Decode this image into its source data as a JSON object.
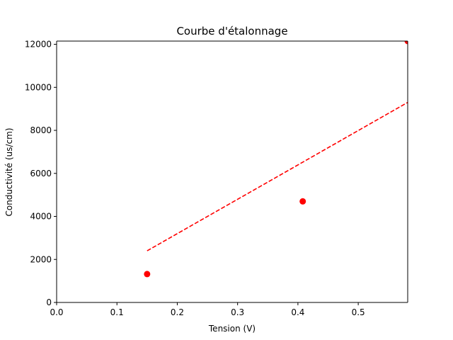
{
  "chart_data": {
    "type": "scatter",
    "title": "Courbe d'étalonnage",
    "xlabel": "Tension (V)",
    "ylabel": "Conductivité (us/cm)",
    "xlim": [
      0,
      0.582
    ],
    "ylim": [
      0,
      12150
    ],
    "x_ticks": [
      0.0,
      0.1,
      0.2,
      0.3,
      0.4,
      0.5
    ],
    "x_tick_labels": [
      "0.0",
      "0.1",
      "0.2",
      "0.3",
      "0.4",
      "0.5"
    ],
    "y_ticks": [
      0,
      2000,
      4000,
      6000,
      8000,
      10000,
      12000
    ],
    "y_tick_labels": [
      "0",
      "2000",
      "4000",
      "6000",
      "8000",
      "10000",
      "12000"
    ],
    "grid": false,
    "series": [
      {
        "kind": "scatter",
        "x": [
          0.15,
          0.408,
          0.582
        ],
        "y": [
          1320,
          4700,
          12150
        ],
        "color": "#ff0000"
      },
      {
        "kind": "line",
        "style": "dashed",
        "x": [
          0.15,
          0.582
        ],
        "y": [
          2400,
          9300
        ],
        "color": "#ff0000"
      }
    ]
  }
}
